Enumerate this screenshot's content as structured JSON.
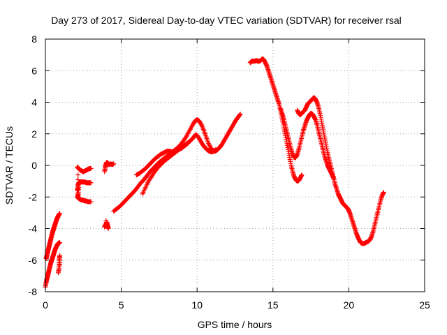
{
  "chart_data": {
    "type": "scatter",
    "title": "Day 273 of 2017, Sidereal Day-to-day VTEC variation (SDTVAR) for receiver rsal",
    "xlabel": "GPS time / hours",
    "ylabel": "SDTVAR / TECUs",
    "xlim": [
      0,
      25
    ],
    "ylim": [
      -8,
      8
    ],
    "xticks": [
      "0",
      "5",
      "10",
      "15",
      "20",
      "25"
    ],
    "yticks": [
      "-8",
      "-6",
      "-4",
      "-2",
      "0",
      "2",
      "4",
      "6",
      "8"
    ],
    "grid": true,
    "marker": "+",
    "color": "#ff0000",
    "series": [
      {
        "x": [
          0.0,
          0.05,
          0.1,
          0.15,
          0.2,
          0.25,
          0.3,
          0.35,
          0.4,
          0.45,
          0.5,
          0.55,
          0.6,
          0.65,
          0.7,
          0.75,
          0.8,
          0.85,
          0.9,
          0.95
        ],
        "y": [
          -7.7,
          -7.4,
          -7.2,
          -7.0,
          -6.8,
          -6.6,
          -6.4,
          -6.2,
          -6.05,
          -5.9,
          -5.75,
          -5.6,
          -5.45,
          -5.3,
          -5.2,
          -5.1,
          -5.0,
          -4.95,
          -4.9,
          -4.9
        ]
      },
      {
        "x": [
          0.05,
          0.1,
          0.15,
          0.2,
          0.25,
          0.3,
          0.35,
          0.4,
          0.45,
          0.5,
          0.55,
          0.6,
          0.65,
          0.7,
          0.75,
          0.8,
          0.85,
          0.9,
          0.95
        ],
        "y": [
          -5.9,
          -5.7,
          -5.5,
          -5.3,
          -5.1,
          -4.9,
          -4.7,
          -4.5,
          -4.3,
          -4.15,
          -4.0,
          -3.85,
          -3.7,
          -3.55,
          -3.4,
          -3.3,
          -3.2,
          -3.1,
          -3.05
        ]
      },
      {
        "x": [
          0.85,
          0.9,
          0.9,
          0.95,
          0.95
        ],
        "y": [
          -6.8,
          -6.5,
          -6.0,
          -5.7,
          -6.3
        ]
      },
      {
        "x": [
          2.1,
          2.2,
          2.3,
          2.4,
          2.5,
          2.6,
          2.7,
          2.8,
          2.9,
          3.0
        ],
        "y": [
          -0.1,
          -0.2,
          -0.3,
          -0.35,
          -0.4,
          -0.35,
          -0.3,
          -0.25,
          -0.2,
          -0.2
        ]
      },
      {
        "x": [
          2.1,
          2.2,
          2.3,
          2.4,
          2.5,
          2.6,
          2.7,
          2.8,
          2.9,
          3.0
        ],
        "y": [
          -2.0,
          -2.1,
          -2.15,
          -2.2,
          -2.2,
          -2.25,
          -2.25,
          -2.3,
          -2.3,
          -2.3
        ]
      },
      {
        "x": [
          2.1,
          2.15,
          2.2,
          2.3,
          2.4,
          2.5,
          2.6,
          2.7,
          2.8,
          2.9,
          3.0,
          2.15,
          2.15,
          2.15,
          2.2
        ],
        "y": [
          -1.6,
          -1.3,
          -1.1,
          -1.05,
          -1.05,
          -1.05,
          -1.05,
          -1.1,
          -1.1,
          -1.1,
          -1.1,
          -0.6,
          -1.8,
          -2.0,
          -1.4
        ]
      },
      {
        "x": [
          3.9,
          3.95,
          4.0,
          4.05,
          4.1,
          4.15,
          4.2,
          4.3,
          4.4,
          4.5
        ],
        "y": [
          -0.4,
          -0.1,
          0.1,
          0.2,
          0.15,
          0.1,
          0.05,
          0.1,
          0.05,
          0.1
        ]
      },
      {
        "x": [
          3.9,
          3.95,
          4.0,
          4.05,
          4.1,
          4.15,
          4.0,
          4.1
        ],
        "y": [
          -3.9,
          -3.8,
          -3.7,
          -3.6,
          -3.8,
          -4.0,
          -3.5,
          -3.9
        ]
      },
      {
        "x": [
          4.5,
          4.7,
          4.9,
          5.1,
          5.3,
          5.5,
          5.7,
          5.9,
          6.1,
          6.3,
          6.5,
          6.7,
          6.9,
          7.1,
          7.3,
          7.5,
          7.7,
          7.9,
          8.1,
          8.3,
          8.5,
          8.7,
          8.9,
          9.1,
          9.3,
          9.5,
          9.7,
          9.85,
          10.0,
          10.15,
          10.3,
          10.45,
          10.6,
          10.75,
          10.9,
          11.05,
          11.2,
          11.35,
          11.5,
          11.65,
          11.8,
          11.95,
          12.1,
          12.25,
          12.4,
          12.55,
          12.7,
          12.85
        ],
        "y": [
          -2.9,
          -2.75,
          -2.6,
          -2.4,
          -2.2,
          -2.0,
          -1.8,
          -1.6,
          -1.35,
          -1.1,
          -0.9,
          -0.65,
          -0.4,
          -0.2,
          0.0,
          0.2,
          0.35,
          0.5,
          0.65,
          0.8,
          0.95,
          1.1,
          1.3,
          1.55,
          1.85,
          2.2,
          2.55,
          2.8,
          2.9,
          2.8,
          2.55,
          2.2,
          1.8,
          1.4,
          1.1,
          0.95,
          0.9,
          1.0,
          1.15,
          1.35,
          1.6,
          1.85,
          2.1,
          2.35,
          2.6,
          2.85,
          3.05,
          3.25
        ]
      },
      {
        "x": [
          6.4,
          6.6,
          6.8,
          7.0,
          7.2,
          7.4,
          7.6,
          7.8,
          8.0,
          8.2,
          8.4,
          8.6,
          8.8,
          9.0,
          9.2,
          9.4,
          9.6,
          9.75,
          9.9,
          10.05,
          10.2,
          10.35,
          10.5,
          10.65,
          10.8,
          10.95,
          11.1,
          11.25
        ],
        "y": [
          -1.8,
          -1.4,
          -1.0,
          -0.7,
          -0.4,
          -0.15,
          0.05,
          0.25,
          0.4,
          0.55,
          0.7,
          0.85,
          1.0,
          1.15,
          1.3,
          1.45,
          1.6,
          1.75,
          1.95,
          1.85,
          1.6,
          1.35,
          1.15,
          1.0,
          0.9,
          0.85,
          0.9,
          1.0
        ]
      },
      {
        "x": [
          6.0,
          6.2,
          6.4,
          6.6,
          6.8,
          7.0,
          7.2,
          7.4,
          7.6,
          7.8,
          8.0,
          8.2,
          8.4,
          8.6,
          8.8,
          9.0,
          9.2,
          9.4
        ],
        "y": [
          -0.6,
          -0.5,
          -0.35,
          -0.2,
          0.0,
          0.2,
          0.4,
          0.55,
          0.7,
          0.8,
          0.9,
          0.9,
          0.85,
          0.9,
          1.0,
          1.1,
          1.25,
          1.4
        ]
      },
      {
        "x": [
          13.5,
          13.6,
          13.7,
          13.8,
          13.9,
          14.0,
          14.1,
          14.2,
          14.3,
          14.4,
          14.5,
          14.6,
          14.7,
          14.8,
          14.9,
          15.0,
          15.1,
          15.2,
          15.3,
          15.4,
          15.5,
          15.6,
          15.7,
          15.8,
          15.9,
          16.0,
          16.1,
          16.2,
          16.3,
          16.4,
          16.5,
          16.6,
          16.7,
          16.8,
          16.9
        ],
        "y": [
          6.5,
          6.6,
          6.6,
          6.6,
          6.65,
          6.6,
          6.6,
          6.65,
          6.75,
          6.7,
          6.5,
          6.3,
          6.0,
          5.7,
          5.4,
          5.1,
          4.8,
          4.5,
          4.2,
          3.9,
          3.5,
          3.0,
          2.5,
          2.0,
          1.5,
          1.0,
          0.5,
          0.0,
          -0.4,
          -0.7,
          -0.9,
          -1.0,
          -0.95,
          -0.8,
          -0.6
        ]
      },
      {
        "x": [
          15.5,
          15.6,
          15.7,
          15.8,
          15.9,
          16.0,
          16.1,
          16.2,
          16.3,
          16.4,
          16.5,
          16.6,
          16.7,
          16.8,
          16.9,
          17.0,
          17.1,
          17.2,
          17.3,
          17.4,
          17.5,
          17.6,
          17.7,
          17.8,
          17.9,
          18.0,
          18.1,
          18.2,
          18.3,
          18.4,
          18.5,
          18.6,
          18.7,
          18.8,
          18.9,
          19.0
        ],
        "y": [
          3.6,
          3.3,
          3.0,
          2.6,
          2.2,
          1.8,
          1.4,
          1.0,
          0.7,
          0.5,
          0.5,
          0.7,
          1.0,
          1.4,
          1.8,
          2.2,
          2.5,
          2.8,
          3.0,
          3.2,
          3.3,
          3.25,
          3.1,
          2.9,
          2.6,
          2.2,
          1.8,
          1.4,
          1.0,
          0.6,
          0.3,
          0.0,
          -0.2,
          -0.4,
          -0.6,
          -0.8
        ]
      },
      {
        "x": [
          16.6,
          16.7,
          16.8,
          16.9,
          17.0,
          17.1,
          17.2,
          17.3,
          17.4,
          17.5,
          17.6,
          17.7,
          17.8,
          17.9,
          18.0,
          18.1,
          18.2,
          18.3,
          18.4,
          18.5,
          18.6,
          18.7,
          18.8,
          18.9,
          19.0,
          19.1,
          19.2,
          19.3,
          19.4,
          19.5,
          19.6,
          19.7,
          19.8,
          19.9,
          20.0,
          20.1,
          20.2,
          20.3,
          20.4,
          20.5,
          20.6,
          20.7,
          20.8,
          20.9,
          21.0,
          21.1,
          21.2,
          21.3,
          21.4,
          21.5,
          21.6,
          21.7,
          21.8,
          21.9,
          22.0,
          22.1,
          22.2,
          22.3
        ],
        "y": [
          3.5,
          3.3,
          3.2,
          3.3,
          3.4,
          3.5,
          3.7,
          3.9,
          4.0,
          4.1,
          4.2,
          4.3,
          4.2,
          4.0,
          3.7,
          3.3,
          2.8,
          2.3,
          1.8,
          1.3,
          0.8,
          0.4,
          0.0,
          -0.4,
          -0.8,
          -1.2,
          -1.5,
          -1.8,
          -2.0,
          -2.2,
          -2.4,
          -2.5,
          -2.6,
          -2.7,
          -2.85,
          -3.1,
          -3.4,
          -3.7,
          -4.0,
          -4.3,
          -4.55,
          -4.75,
          -4.9,
          -4.95,
          -4.95,
          -4.9,
          -4.85,
          -4.8,
          -4.7,
          -4.5,
          -4.2,
          -3.8,
          -3.4,
          -3.0,
          -2.6,
          -2.2,
          -1.9,
          -1.7
        ]
      }
    ]
  }
}
